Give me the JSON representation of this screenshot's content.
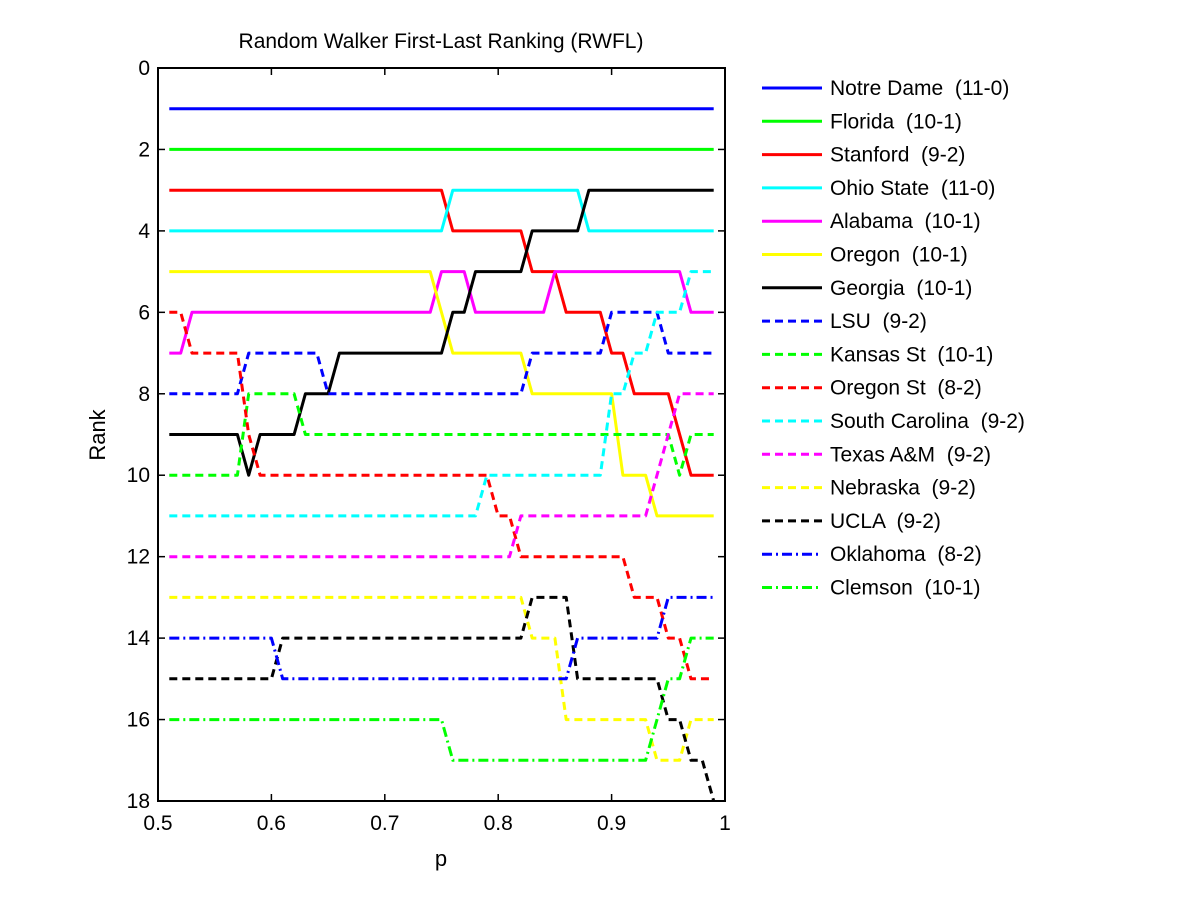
{
  "chart_data": {
    "type": "line",
    "title": "Random Walker First-Last Ranking (RWFL)",
    "xlabel": "p",
    "ylabel": "Rank",
    "xlim": [
      0.5,
      1.0
    ],
    "ylim": [
      0,
      18
    ],
    "y_reversed": true,
    "x_ticks": [
      0.5,
      0.6,
      0.7,
      0.8,
      0.9,
      1.0
    ],
    "x_tick_labels": [
      "0.5",
      "0.6",
      "0.7",
      "0.8",
      "0.9",
      "1"
    ],
    "y_ticks": [
      0,
      2,
      4,
      6,
      8,
      10,
      12,
      14,
      16,
      18
    ],
    "y_tick_labels": [
      "0",
      "2",
      "4",
      "6",
      "8",
      "10",
      "12",
      "14",
      "16",
      "18"
    ],
    "grid": false,
    "legend_position": "outside-right",
    "series": [
      {
        "name": "Notre Dame  (11-0)",
        "color": "#0000ff",
        "style": "solid",
        "points": [
          [
            0.51,
            1
          ],
          [
            0.99,
            1
          ]
        ]
      },
      {
        "name": "Florida  (10-1)",
        "color": "#00ff00",
        "style": "solid",
        "points": [
          [
            0.51,
            2
          ],
          [
            0.99,
            2
          ]
        ]
      },
      {
        "name": "Stanford  (9-2)",
        "color": "#ff0000",
        "style": "solid",
        "points": [
          [
            0.51,
            3
          ],
          [
            0.75,
            3
          ],
          [
            0.76,
            4
          ],
          [
            0.82,
            4
          ],
          [
            0.83,
            5
          ],
          [
            0.85,
            5
          ],
          [
            0.86,
            6
          ],
          [
            0.89,
            6
          ],
          [
            0.9,
            7
          ],
          [
            0.91,
            7
          ],
          [
            0.92,
            8
          ],
          [
            0.95,
            8
          ],
          [
            0.97,
            10
          ],
          [
            0.99,
            10
          ]
        ]
      },
      {
        "name": "Ohio State  (11-0)",
        "color": "#00ffff",
        "style": "solid",
        "points": [
          [
            0.51,
            4
          ],
          [
            0.75,
            4
          ],
          [
            0.76,
            3
          ],
          [
            0.87,
            3
          ],
          [
            0.88,
            4
          ],
          [
            0.99,
            4
          ]
        ]
      },
      {
        "name": "Alabama  (10-1)",
        "color": "#ff00ff",
        "style": "solid",
        "points": [
          [
            0.51,
            7
          ],
          [
            0.52,
            7
          ],
          [
            0.53,
            6
          ],
          [
            0.74,
            6
          ],
          [
            0.75,
            5
          ],
          [
            0.77,
            5
          ],
          [
            0.78,
            6
          ],
          [
            0.84,
            6
          ],
          [
            0.85,
            5
          ],
          [
            0.96,
            5
          ],
          [
            0.97,
            6
          ],
          [
            0.99,
            6
          ]
        ]
      },
      {
        "name": "Oregon  (10-1)",
        "color": "#ffff00",
        "style": "solid",
        "points": [
          [
            0.51,
            5
          ],
          [
            0.74,
            5
          ],
          [
            0.76,
            7
          ],
          [
            0.82,
            7
          ],
          [
            0.83,
            8
          ],
          [
            0.9,
            8
          ],
          [
            0.91,
            10
          ],
          [
            0.93,
            10
          ],
          [
            0.94,
            11
          ],
          [
            0.99,
            11
          ]
        ]
      },
      {
        "name": "Georgia  (10-1)",
        "color": "#000000",
        "style": "solid",
        "points": [
          [
            0.51,
            9
          ],
          [
            0.57,
            9
          ],
          [
            0.58,
            10
          ],
          [
            0.59,
            9
          ],
          [
            0.62,
            9
          ],
          [
            0.63,
            8
          ],
          [
            0.65,
            8
          ],
          [
            0.66,
            7
          ],
          [
            0.75,
            7
          ],
          [
            0.76,
            6
          ],
          [
            0.77,
            6
          ],
          [
            0.78,
            5
          ],
          [
            0.81,
            5
          ],
          [
            0.82,
            5
          ],
          [
            0.83,
            4
          ],
          [
            0.87,
            4
          ],
          [
            0.88,
            3
          ],
          [
            0.99,
            3
          ]
        ]
      },
      {
        "name": "LSU  (9-2)",
        "color": "#0000ff",
        "style": "dashed",
        "points": [
          [
            0.51,
            8
          ],
          [
            0.57,
            8
          ],
          [
            0.58,
            7
          ],
          [
            0.64,
            7
          ],
          [
            0.65,
            8
          ],
          [
            0.82,
            8
          ],
          [
            0.83,
            7
          ],
          [
            0.89,
            7
          ],
          [
            0.9,
            6
          ],
          [
            0.94,
            6
          ],
          [
            0.95,
            7
          ],
          [
            0.99,
            7
          ]
        ]
      },
      {
        "name": "Kansas St  (10-1)",
        "color": "#00ff00",
        "style": "dashed",
        "points": [
          [
            0.51,
            10
          ],
          [
            0.57,
            10
          ],
          [
            0.58,
            8
          ],
          [
            0.62,
            8
          ],
          [
            0.63,
            9
          ],
          [
            0.95,
            9
          ],
          [
            0.96,
            10
          ],
          [
            0.97,
            9
          ],
          [
            0.99,
            9
          ]
        ]
      },
      {
        "name": "Oregon St  (8-2)",
        "color": "#ff0000",
        "style": "dashed",
        "points": [
          [
            0.51,
            6
          ],
          [
            0.52,
            6
          ],
          [
            0.53,
            7
          ],
          [
            0.57,
            7
          ],
          [
            0.58,
            9
          ],
          [
            0.59,
            10
          ],
          [
            0.79,
            10
          ],
          [
            0.8,
            11
          ],
          [
            0.81,
            11
          ],
          [
            0.82,
            12
          ],
          [
            0.91,
            12
          ],
          [
            0.92,
            13
          ],
          [
            0.94,
            13
          ],
          [
            0.95,
            14
          ],
          [
            0.96,
            14
          ],
          [
            0.97,
            15
          ],
          [
            0.99,
            15
          ]
        ]
      },
      {
        "name": "South Carolina  (9-2)",
        "color": "#00ffff",
        "style": "dashed",
        "points": [
          [
            0.51,
            11
          ],
          [
            0.78,
            11
          ],
          [
            0.79,
            10
          ],
          [
            0.89,
            10
          ],
          [
            0.9,
            8
          ],
          [
            0.91,
            8
          ],
          [
            0.92,
            7
          ],
          [
            0.93,
            7
          ],
          [
            0.94,
            6
          ],
          [
            0.96,
            6
          ],
          [
            0.97,
            5
          ],
          [
            0.99,
            5
          ]
        ]
      },
      {
        "name": "Texas A&M  (9-2)",
        "color": "#ff00ff",
        "style": "dashed",
        "points": [
          [
            0.51,
            12
          ],
          [
            0.81,
            12
          ],
          [
            0.82,
            11
          ],
          [
            0.93,
            11
          ],
          [
            0.94,
            10
          ],
          [
            0.95,
            9
          ],
          [
            0.96,
            8
          ],
          [
            0.99,
            8
          ]
        ]
      },
      {
        "name": "Nebraska  (9-2)",
        "color": "#ffff00",
        "style": "dashed",
        "points": [
          [
            0.51,
            13
          ],
          [
            0.82,
            13
          ],
          [
            0.83,
            14
          ],
          [
            0.85,
            14
          ],
          [
            0.86,
            16
          ],
          [
            0.93,
            16
          ],
          [
            0.94,
            17
          ],
          [
            0.96,
            17
          ],
          [
            0.97,
            16
          ],
          [
            0.99,
            16
          ]
        ]
      },
      {
        "name": "UCLA  (9-2)",
        "color": "#000000",
        "style": "dashed",
        "points": [
          [
            0.51,
            15
          ],
          [
            0.6,
            15
          ],
          [
            0.61,
            14
          ],
          [
            0.82,
            14
          ],
          [
            0.83,
            13
          ],
          [
            0.86,
            13
          ],
          [
            0.87,
            15
          ],
          [
            0.94,
            15
          ],
          [
            0.95,
            16
          ],
          [
            0.96,
            16
          ],
          [
            0.97,
            17
          ],
          [
            0.98,
            17
          ],
          [
            0.99,
            18
          ]
        ]
      },
      {
        "name": "Oklahoma  (8-2)",
        "color": "#0000ff",
        "style": "dashdot",
        "points": [
          [
            0.51,
            14
          ],
          [
            0.6,
            14
          ],
          [
            0.61,
            15
          ],
          [
            0.86,
            15
          ],
          [
            0.87,
            14
          ],
          [
            0.94,
            14
          ],
          [
            0.95,
            13
          ],
          [
            0.99,
            13
          ]
        ]
      },
      {
        "name": "Clemson  (10-1)",
        "color": "#00ff00",
        "style": "dashdot",
        "points": [
          [
            0.51,
            16
          ],
          [
            0.75,
            16
          ],
          [
            0.76,
            17
          ],
          [
            0.93,
            17
          ],
          [
            0.94,
            16
          ],
          [
            0.95,
            15
          ],
          [
            0.96,
            15
          ],
          [
            0.97,
            14
          ],
          [
            0.99,
            14
          ]
        ]
      }
    ]
  }
}
